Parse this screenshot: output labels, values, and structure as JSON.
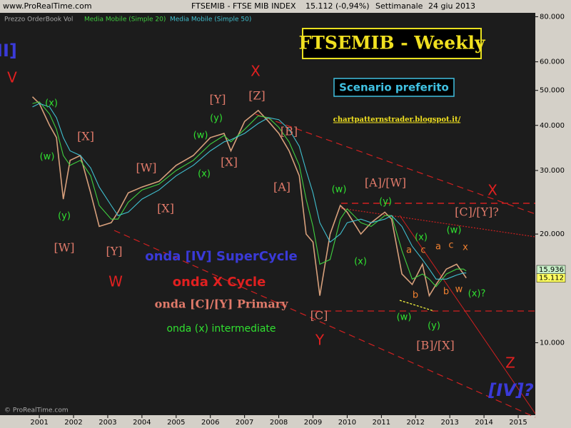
{
  "header": {
    "site": "www.ProRealTime.com",
    "instrument": "FTSEMIB - FTSE MIB INDEX",
    "quote": "15.112 (-0,94%)",
    "period": "Settimanale",
    "date": "24 giu 2013",
    "copyright": "© ProRealTime.com"
  },
  "chart_data": {
    "type": "line",
    "log_scale": true,
    "grid": false,
    "legend_prefix": "Prezzo OrderBook Vol",
    "x": [
      2000.8,
      2001.0,
      2001.3,
      2001.5,
      2001.7,
      2001.9,
      2002.2,
      2002.5,
      2002.75,
      2003.1,
      2003.3,
      2003.6,
      2004.0,
      2004.5,
      2005.0,
      2005.5,
      2006.0,
      2006.4,
      2006.6,
      2007.0,
      2007.4,
      2007.7,
      2008.0,
      2008.3,
      2008.6,
      2008.8,
      2009.0,
      2009.2,
      2009.5,
      2009.8,
      2010.0,
      2010.4,
      2010.7,
      2011.1,
      2011.3,
      2011.6,
      2011.9,
      2012.2,
      2012.4,
      2012.6,
      2012.9,
      2013.2,
      2013.4,
      2013.48
    ],
    "series": [
      {
        "name": "Prezzo",
        "color": "#d8a07c",
        "values": [
          48000,
          46000,
          40000,
          37000,
          25000,
          32000,
          33000,
          26000,
          21000,
          21500,
          23000,
          26000,
          27000,
          28000,
          31000,
          33000,
          37000,
          38000,
          34000,
          41000,
          44000,
          41000,
          38000,
          34000,
          29000,
          20000,
          19000,
          13500,
          20000,
          24000,
          23000,
          20000,
          21500,
          23000,
          22000,
          15500,
          14500,
          16500,
          13500,
          14500,
          16000,
          16500,
          15500,
          15112
        ]
      },
      {
        "name": "Media Mobile (Simple 20)",
        "color": "#40d040",
        "values": [
          46000,
          46500,
          43000,
          39000,
          33000,
          31000,
          32000,
          29000,
          24000,
          22000,
          22000,
          24500,
          26500,
          27500,
          30000,
          32000,
          35500,
          37500,
          36000,
          39000,
          42500,
          42000,
          39500,
          36000,
          31000,
          25000,
          21000,
          16500,
          17000,
          22000,
          23500,
          21500,
          21000,
          22500,
          22500,
          18000,
          15000,
          15500,
          15000,
          14300,
          15500,
          16000,
          16000,
          15800
        ]
      },
      {
        "name": "Media Mobile (Simple 50)",
        "color": "#40c0d0",
        "values": [
          45000,
          46000,
          45000,
          42000,
          37000,
          34000,
          33000,
          30500,
          27000,
          24000,
          22500,
          23000,
          25000,
          26500,
          29000,
          31000,
          34000,
          36000,
          36500,
          38000,
          40500,
          42000,
          41500,
          39000,
          35000,
          30000,
          26000,
          21500,
          19000,
          20000,
          21500,
          22000,
          21500,
          22000,
          22500,
          21000,
          18500,
          17000,
          16000,
          15000,
          15000,
          15400,
          15600,
          15600
        ]
      }
    ],
    "xlim": [
      1999.85,
      2015.5
    ],
    "xticks": [
      2001,
      2002,
      2003,
      2004,
      2005,
      2006,
      2007,
      2008,
      2009,
      2010,
      2011,
      2012,
      2013,
      2014,
      2015
    ],
    "ylim": [
      6300,
      82000
    ],
    "yticks": [
      {
        "value": 10000,
        "label": "10.000"
      },
      {
        "value": 20000,
        "label": "20.000"
      },
      {
        "value": 30000,
        "label": "30.000"
      },
      {
        "value": 40000,
        "label": "40.000"
      },
      {
        "value": 50000,
        "label": "50.000"
      },
      {
        "value": 60000,
        "label": "60.000"
      },
      {
        "value": 80000,
        "label": "80.000"
      }
    ],
    "price_tags": [
      {
        "value": 15936,
        "label": "15.936",
        "color": "#c8f0c8"
      },
      {
        "value": 15112,
        "label": "15.112",
        "color": "#ffff60"
      }
    ],
    "title_box": "FTSEMIB - Weekly",
    "scenario": "Scenario preferito",
    "blog": "chartpatternstrader.blogspot.it/",
    "annotations": [
      {
        "text": "III]",
        "color": "#3a3ad8"
      },
      {
        "text": "V",
        "color": "#e02020"
      },
      {
        "text": "X",
        "color": "#e02020"
      },
      {
        "text": "(x)",
        "color": "#30e030"
      },
      {
        "text": "[Y]",
        "color": "#e07a6a"
      },
      {
        "text": "[Z]",
        "color": "#e07a6a"
      },
      {
        "text": "[X]",
        "color": "#e07a6a"
      },
      {
        "text": "(y)",
        "color": "#30e030"
      },
      {
        "text": "(w)",
        "color": "#30e030"
      },
      {
        "text": "(w)",
        "color": "#30e030"
      },
      {
        "text": "[B]",
        "color": "#e07a6a"
      },
      {
        "text": "[W]",
        "color": "#e07a6a"
      },
      {
        "text": "[X]",
        "color": "#e07a6a"
      },
      {
        "text": "(x)",
        "color": "#30e030"
      },
      {
        "text": "[A]",
        "color": "#e07a6a"
      },
      {
        "text": "(w)",
        "color": "#30e030"
      },
      {
        "text": "[A]/[W]",
        "color": "#e07a6a"
      },
      {
        "text": "X",
        "color": "#e02020"
      },
      {
        "text": "(y)",
        "color": "#30e030"
      },
      {
        "text": "[X]",
        "color": "#e07a6a"
      },
      {
        "text": "(y)",
        "color": "#30e030"
      },
      {
        "text": "[C]/[Y]?",
        "color": "#e07a6a"
      },
      {
        "text": "(w)",
        "color": "#30e030"
      },
      {
        "text": "(x)",
        "color": "#30e030"
      },
      {
        "text": "[W]",
        "color": "#e07a6a"
      },
      {
        "text": "[Y]",
        "color": "#e07a6a"
      },
      {
        "text": "a",
        "color": "#f08030"
      },
      {
        "text": "c",
        "color": "#f08030"
      },
      {
        "text": "a",
        "color": "#f08030"
      },
      {
        "text": "c",
        "color": "#f08030"
      },
      {
        "text": "x",
        "color": "#f08030"
      },
      {
        "text": "(x)",
        "color": "#30e030"
      },
      {
        "text": "W",
        "color": "#e02020"
      },
      {
        "text": "b",
        "color": "#f08030"
      },
      {
        "text": "b",
        "color": "#f08030"
      },
      {
        "text": "w",
        "color": "#f08030"
      },
      {
        "text": "(x)?",
        "color": "#30e030"
      },
      {
        "text": "[C]",
        "color": "#e07a6a"
      },
      {
        "text": "(w)",
        "color": "#30e030"
      },
      {
        "text": "Y",
        "color": "#e02020"
      },
      {
        "text": "(y)",
        "color": "#30e030"
      },
      {
        "text": "[B]/[X]",
        "color": "#e07a6a"
      },
      {
        "text": "Z",
        "color": "#e02020"
      },
      {
        "text": "[IV]?",
        "color": "#3a3ad8"
      },
      {
        "text": "onda [IV] SuperCycle",
        "color": "#3a3ad8"
      },
      {
        "text": "onda X Cycle",
        "color": "#e02020"
      },
      {
        "text": "onda [C]/[Y] Primary",
        "color": "#e07a6a"
      },
      {
        "text": "onda (x) intermediate",
        "color": "#30e030"
      }
    ]
  }
}
